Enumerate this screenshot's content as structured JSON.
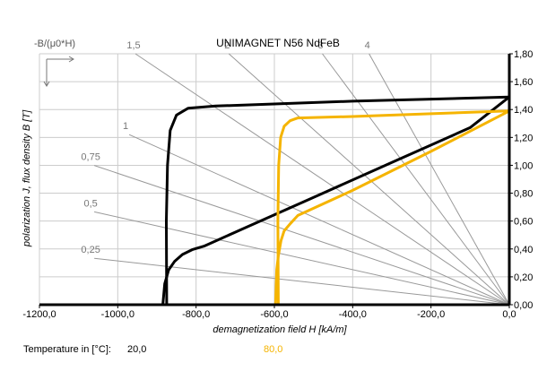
{
  "chart_data": {
    "type": "line",
    "title": "UNIMAGNET N56 NdFeB",
    "corner_label": "-B/(μ0*H)",
    "xlabel": "demagnetization field H [kA/m]",
    "ylabel": "polarization J, flux density B [T]",
    "xlim": [
      -1200,
      0
    ],
    "ylim": [
      0,
      1.8
    ],
    "x_ticks": [
      -1200,
      -1000,
      -800,
      -600,
      -400,
      -200,
      0
    ],
    "x_tick_labels": [
      "-1200,0",
      "-1000,0",
      "-800,0",
      "-600,0",
      "-400,0",
      "-200,0",
      "0,0"
    ],
    "y_ticks": [
      0,
      0.2,
      0.4,
      0.6,
      0.8,
      1.0,
      1.2,
      1.4,
      1.6,
      1.8
    ],
    "y_tick_labels": [
      "0,00",
      "0,20",
      "0,40",
      "0,60",
      "0,80",
      "1,00",
      "1,20",
      "1,40",
      "1,60",
      "1,80"
    ],
    "grid": true,
    "y_axis_position": "right",
    "permeance_lines": {
      "color": "#999999",
      "values": [
        0.25,
        0.5,
        0.75,
        1,
        1.5,
        2,
        3,
        4
      ],
      "labels": [
        "0,25",
        "0,5",
        "0,75",
        "1",
        "1,5",
        "2",
        "3",
        "4"
      ]
    },
    "legend": {
      "label": "Temperature in [°C]:",
      "position": "bottom-left"
    },
    "series": [
      {
        "name": "20,0",
        "color": "#000000",
        "curves": [
          {
            "kind": "J",
            "x": [
              -875,
              -876,
              -873,
              -866,
              -850,
              -820,
              -750,
              -600,
              -400,
              -200,
              0
            ],
            "y": [
              0.0,
              0.6,
              1.0,
              1.25,
              1.36,
              1.41,
              1.425,
              1.44,
              1.46,
              1.475,
              1.49
            ]
          },
          {
            "kind": "B",
            "x": [
              -885,
              -880,
              -870,
              -855,
              -835,
              -810,
              -780,
              -700,
              -500,
              -300,
              -100,
              0
            ],
            "y": [
              0.0,
              0.15,
              0.25,
              0.31,
              0.36,
              0.395,
              0.42,
              0.52,
              0.77,
              1.02,
              1.27,
              1.49
            ]
          }
        ]
      },
      {
        "name": "80,0",
        "color": "#F5B400",
        "curves": [
          {
            "kind": "J",
            "x": [
              -590,
              -591,
              -589,
              -584,
              -575,
              -560,
              -540,
              -400,
              -200,
              0
            ],
            "y": [
              0.0,
              0.6,
              1.0,
              1.2,
              1.28,
              1.32,
              1.34,
              1.35,
              1.37,
              1.39
            ]
          },
          {
            "kind": "B",
            "x": [
              -597,
              -594,
              -590,
              -583,
              -575,
              -560,
              -540,
              -400,
              -200,
              0
            ],
            "y": [
              0.0,
              0.25,
              0.35,
              0.46,
              0.53,
              0.58,
              0.64,
              0.82,
              1.1,
              1.39
            ]
          }
        ]
      }
    ]
  }
}
